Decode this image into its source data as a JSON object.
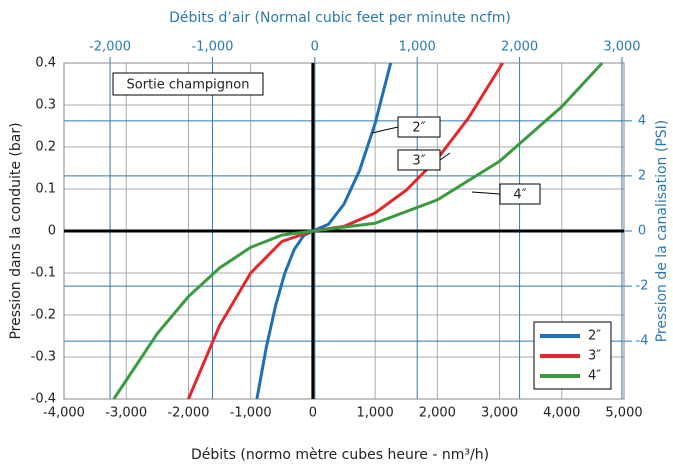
{
  "chart_data": {
    "type": "line",
    "title": "Débits d’air (Normal cubic feet per minute ncfm)",
    "xlabel": "Débits (normo mètre cubes heure - nm³/h)",
    "ylabel": "Pression dans la conduite (bar)",
    "y2label": "Pression de la canalisation (PSI)",
    "xlim": [
      -4000,
      5000
    ],
    "xticks": [
      {
        "value": -4000,
        "label": "-4,000"
      },
      {
        "value": -3000,
        "label": "-3,000"
      },
      {
        "value": -2000,
        "label": "-2,000"
      },
      {
        "value": -1000,
        "label": "-1,000"
      },
      0,
      {
        "value": 1000,
        "label": "1,000"
      },
      {
        "value": 2000,
        "label": "2,000"
      },
      {
        "value": 3000,
        "label": "3,000"
      },
      {
        "value": 4000,
        "label": "4,000"
      },
      {
        "value": 5000,
        "label": "5,000"
      }
    ],
    "x2lim": [
      -2450,
      3020
    ],
    "x2ticks": [
      {
        "value": -2000,
        "label": "-2,000"
      },
      {
        "value": -1000,
        "label": "-1,000"
      },
      0,
      {
        "value": 1000,
        "label": "1,000"
      },
      {
        "value": 2000,
        "label": "2,000"
      },
      {
        "value": 3000,
        "label": "3,000"
      }
    ],
    "ylim": [
      -0.4,
      0.4
    ],
    "yticks": [
      -0.4,
      -0.3,
      -0.2,
      -0.1,
      0,
      0.1,
      0.2,
      0.3,
      0.4
    ],
    "y2lim": [
      -6.1,
      6.1
    ],
    "y2ticks": [
      -4,
      -2,
      0,
      2,
      4
    ],
    "grid": true,
    "legend": "lower right",
    "annotations": [
      "Sortie champignon",
      "2″",
      "3″",
      "4″"
    ],
    "series": [
      {
        "name": "2″",
        "color": "#1f6fb5",
        "x": [
          -900,
          -750,
          -600,
          -450,
          -300,
          -150,
          0,
          250,
          500,
          750,
          1000,
          1250
        ],
        "values": [
          -0.4,
          -0.278,
          -0.178,
          -0.1,
          -0.044,
          -0.011,
          0,
          0.016,
          0.064,
          0.144,
          0.256,
          0.4
        ]
      },
      {
        "name": "3″",
        "color": "#e5272d",
        "x": [
          -2000,
          -1500,
          -1000,
          -500,
          0,
          500,
          1000,
          1500,
          2000,
          2500,
          3050
        ],
        "values": [
          -0.4,
          -0.225,
          -0.1,
          -0.025,
          0,
          0.011,
          0.043,
          0.097,
          0.172,
          0.269,
          0.4
        ]
      },
      {
        "name": "4″",
        "color": "#3a9a3f",
        "x": [
          -3200,
          -2500,
          -2000,
          -1500,
          -1000,
          -500,
          0,
          1000,
          2000,
          3000,
          4000,
          4650
        ],
        "values": [
          -0.4,
          -0.244,
          -0.156,
          -0.088,
          -0.039,
          -0.0098,
          0,
          0.0185,
          0.074,
          0.166,
          0.296,
          0.4
        ]
      }
    ]
  }
}
